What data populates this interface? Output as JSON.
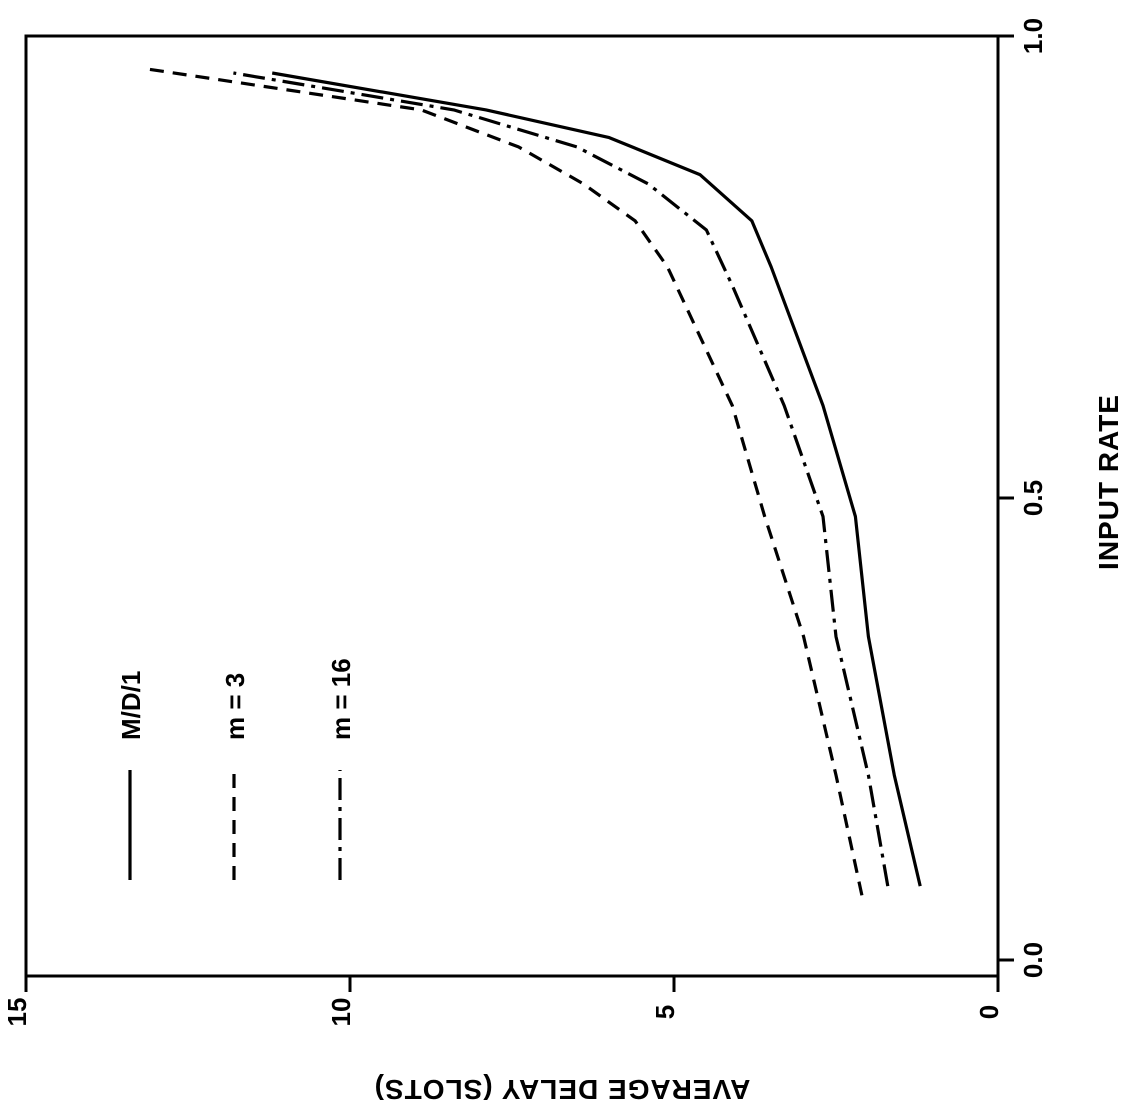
{
  "chart_data": {
    "type": "line",
    "orientation": "rotated-90",
    "xlabel": "INPUT RATE",
    "ylabel": "AVERAGE  DELAY (SLOTS)",
    "xlim": [
      0.0,
      1.0
    ],
    "ylim": [
      0,
      15
    ],
    "x_ticks": [
      "0.0",
      "0.5",
      "1.0"
    ],
    "y_ticks": [
      "0",
      "5",
      "10",
      "15"
    ],
    "grid": false,
    "legend_placement": "upper-left-region",
    "series": [
      {
        "name": "M/D/1",
        "style": "solid",
        "color": "#000000",
        "points": [
          [
            0.08,
            1.2
          ],
          [
            0.2,
            1.6
          ],
          [
            0.35,
            2.0
          ],
          [
            0.48,
            2.2
          ],
          [
            0.6,
            2.7
          ],
          [
            0.75,
            3.5
          ],
          [
            0.8,
            3.8
          ],
          [
            0.85,
            4.6
          ],
          [
            0.89,
            6.0
          ],
          [
            0.92,
            7.9
          ],
          [
            0.96,
            11.2
          ]
        ]
      },
      {
        "name": "m = 3",
        "style": "dashed",
        "color": "#000000",
        "points": [
          [
            0.07,
            2.1
          ],
          [
            0.2,
            2.5
          ],
          [
            0.35,
            3.0
          ],
          [
            0.48,
            3.6
          ],
          [
            0.6,
            4.1
          ],
          [
            0.75,
            5.1
          ],
          [
            0.8,
            5.6
          ],
          [
            0.84,
            6.4
          ],
          [
            0.88,
            7.4
          ],
          [
            0.92,
            8.9
          ],
          [
            0.965,
            13.2
          ]
        ]
      },
      {
        "name": "m = 16",
        "style": "dash-dot",
        "color": "#000000",
        "points": [
          [
            0.08,
            1.7
          ],
          [
            0.2,
            2.0
          ],
          [
            0.35,
            2.5
          ],
          [
            0.48,
            2.7
          ],
          [
            0.6,
            3.3
          ],
          [
            0.73,
            4.1
          ],
          [
            0.79,
            4.5
          ],
          [
            0.84,
            5.4
          ],
          [
            0.88,
            6.5
          ],
          [
            0.92,
            8.4
          ],
          [
            0.96,
            11.8
          ]
        ]
      }
    ]
  }
}
